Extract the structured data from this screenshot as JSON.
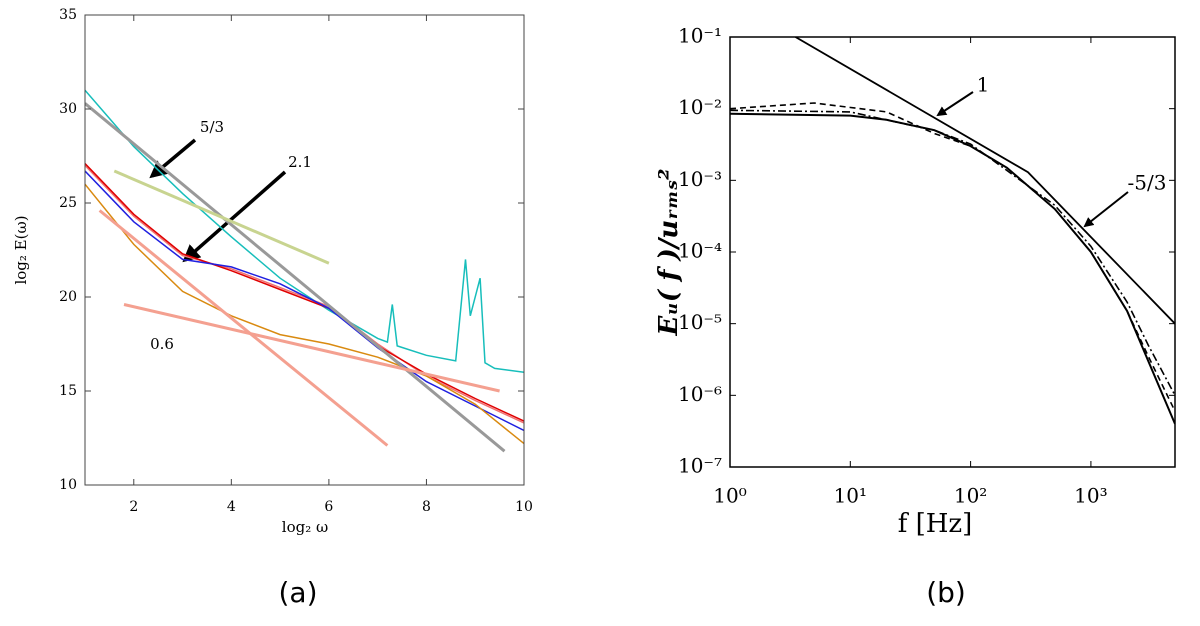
{
  "chart_data": [
    {
      "type": "line",
      "xlabel": "log₂ ω",
      "ylabel": "log₂ E(ω)",
      "caption": "(a)",
      "xlim": [
        1,
        10
      ],
      "ylim": [
        10,
        35
      ],
      "xticks": [
        2,
        4,
        6,
        8,
        10
      ],
      "yticks": [
        10,
        15,
        20,
        25,
        30,
        35
      ],
      "xlog": false,
      "ylog": false,
      "grid": false,
      "annotations": [
        "5/3",
        "2.1",
        "0.6"
      ],
      "series": [
        {
          "color": "#17bebb",
          "linestyle": "solid",
          "width": 1.5,
          "x": [
            1,
            1.5,
            2,
            3,
            4,
            5,
            6,
            7,
            7.2,
            7.3,
            7.4,
            8,
            8.6,
            8.8,
            8.9,
            9.1,
            9.2,
            9.4,
            10
          ],
          "values": [
            31,
            29.5,
            28,
            25.5,
            23.2,
            21,
            19.3,
            17.8,
            17.6,
            19.6,
            17.4,
            16.9,
            16.6,
            22,
            19,
            21,
            16.5,
            16.2,
            16
          ]
        },
        {
          "color": "#f07070",
          "linestyle": "solid",
          "width": 1.5,
          "x": [
            1,
            2,
            3,
            4,
            5,
            6,
            7,
            8,
            9,
            10
          ],
          "values": [
            27,
            24.3,
            22.2,
            21.5,
            20.5,
            19.5,
            17.5,
            15.8,
            14.5,
            13.3
          ]
        },
        {
          "color": "#e00000",
          "linestyle": "solid",
          "width": 1.5,
          "x": [
            1,
            2,
            3,
            4,
            5,
            6,
            7,
            8,
            9,
            10
          ],
          "values": [
            27.1,
            24.4,
            22.3,
            21.4,
            20.4,
            19.4,
            17.4,
            15.9,
            14.6,
            13.4
          ]
        },
        {
          "color": "#2020e0",
          "linestyle": "solid",
          "width": 1.5,
          "x": [
            1,
            2,
            3,
            4,
            5,
            6,
            7,
            8,
            9,
            10
          ],
          "values": [
            26.7,
            24,
            22,
            21.6,
            20.7,
            19.4,
            17.3,
            15.5,
            14.2,
            12.9
          ]
        },
        {
          "color": "#d98a10",
          "linestyle": "solid",
          "width": 1.5,
          "x": [
            1,
            2,
            3,
            4,
            5,
            6,
            7,
            8,
            9,
            10
          ],
          "values": [
            26,
            22.8,
            20.3,
            19,
            18,
            17.5,
            16.8,
            15.8,
            14.3,
            12.2
          ]
        },
        {
          "color": "#999999",
          "linestyle": "solid",
          "width": 3,
          "x": [
            1,
            9.6
          ],
          "values": [
            30.3,
            11.8
          ]
        },
        {
          "color": "#c8d490",
          "linestyle": "solid",
          "width": 3,
          "x": [
            1.6,
            6
          ],
          "values": [
            26.7,
            21.8
          ]
        },
        {
          "color": "#f4a090",
          "linestyle": "solid",
          "width": 3,
          "x": [
            1.3,
            7.2
          ],
          "values": [
            24.6,
            12.1
          ]
        },
        {
          "color": "#f4a090",
          "linestyle": "solid",
          "width": 3,
          "x": [
            1.8,
            9.5
          ],
          "values": [
            19.6,
            15
          ]
        }
      ]
    },
    {
      "type": "line",
      "xlabel": "f [Hz]",
      "ylabel": "Eᵤ( f )/uᵣₘₛ²",
      "caption": "(b)",
      "xlim": [
        1,
        5000
      ],
      "ylim": [
        1e-07,
        0.1
      ],
      "xticks": [
        {
          "value": 1,
          "label": "10⁰"
        },
        {
          "value": 10,
          "label": "10¹"
        },
        {
          "value": 100,
          "label": "10²"
        },
        {
          "value": 1000,
          "label": "10³"
        }
      ],
      "yticks": [
        {
          "value": 1e-07,
          "label": "10⁻⁷"
        },
        {
          "value": 1e-06,
          "label": "10⁻⁶"
        },
        {
          "value": 1e-05,
          "label": "10⁻⁵"
        },
        {
          "value": 0.0001,
          "label": "10⁻⁴"
        },
        {
          "value": 0.001,
          "label": "10⁻³"
        },
        {
          "value": 0.01,
          "label": "10⁻²"
        },
        {
          "value": 0.1,
          "label": "10⁻¹"
        }
      ],
      "xlog": true,
      "ylog": true,
      "grid": false,
      "annotations": [
        "1",
        "-5/3"
      ],
      "series": [
        {
          "color": "#000000",
          "linestyle": "solid",
          "width": 1.8,
          "x": [
            3.5,
            300,
            5000
          ],
          "values": [
            0.1,
            0.0013,
            1e-05
          ]
        },
        {
          "color": "#000000",
          "linestyle": "solid",
          "width": 2,
          "x": [
            1,
            10,
            20,
            50,
            100,
            200,
            500,
            1000,
            2000,
            3000,
            5000
          ],
          "values": [
            0.0085,
            0.008,
            0.007,
            0.005,
            0.003,
            0.0015,
            0.0004,
            0.0001,
            1.5e-05,
            3e-06,
            4e-07
          ]
        },
        {
          "color": "#000000",
          "linestyle": "dashed",
          "width": 1.6,
          "x": [
            1,
            5,
            20,
            50,
            100,
            200,
            500,
            1000,
            2000,
            3000,
            5000
          ],
          "values": [
            0.01,
            0.012,
            0.009,
            0.0045,
            0.003,
            0.0015,
            0.0004,
            0.0001,
            1.5e-05,
            3.5e-06,
            6e-07
          ]
        },
        {
          "color": "#000000",
          "linestyle": "dashdot",
          "width": 1.6,
          "x": [
            1,
            10,
            30,
            50,
            100,
            500,
            1000,
            2000,
            3000,
            5000
          ],
          "values": [
            0.0095,
            0.009,
            0.006,
            0.005,
            0.0032,
            0.00045,
            0.00012,
            2e-05,
            5e-06,
            1e-06
          ]
        }
      ]
    }
  ]
}
